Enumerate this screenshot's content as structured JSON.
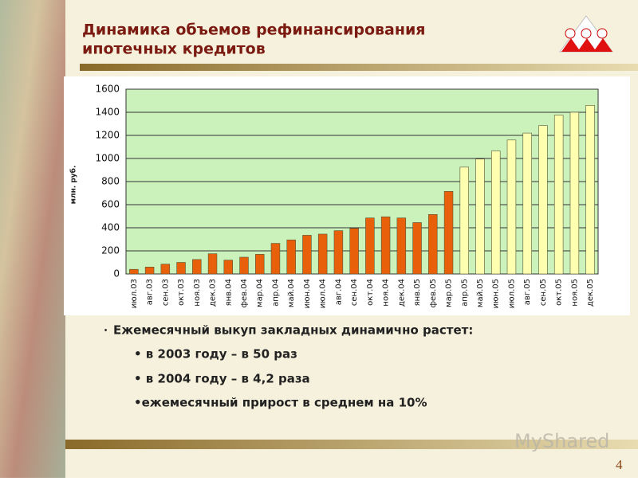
{
  "chart_data": {
    "type": "bar",
    "title": "Динамика объемов рефинансирования",
    "subtitle": "ипотечных кредитов",
    "y_label": "млн. руб.",
    "categories": [
      "июл.03",
      "авг.03",
      "сен.03",
      "окт.03",
      "ноя.03",
      "дек.03",
      "янв.04",
      "фев.04",
      "мар.04",
      "апр.04",
      "май.04",
      "июн.04",
      "июл.04",
      "авг.04",
      "сен.04",
      "окт.04",
      "ноя.04",
      "дек.04",
      "янв.05",
      "фев.05",
      "мар.05",
      "апр.05",
      "май.05",
      "июн.05",
      "июл.05",
      "авг.05",
      "сен.05",
      "окт.05",
      "ноя.05",
      "дек.05"
    ],
    "values": [
      40,
      60,
      85,
      100,
      125,
      175,
      120,
      145,
      170,
      265,
      295,
      335,
      345,
      375,
      395,
      485,
      495,
      485,
      445,
      515,
      715,
      925,
      995,
      1065,
      1160,
      1220,
      1285,
      1375,
      1400,
      1460
    ],
    "colors": [
      "#e8600a",
      "#e8600a",
      "#e8600a",
      "#e8600a",
      "#e8600a",
      "#e8600a",
      "#e8600a",
      "#e8600a",
      "#e8600a",
      "#e8600a",
      "#e8600a",
      "#e8600a",
      "#e8600a",
      "#e8600a",
      "#e8600a",
      "#e8600a",
      "#e8600a",
      "#e8600a",
      "#e8600a",
      "#e8600a",
      "#e8600a",
      "#ffffb0",
      "#ffffb0",
      "#ffffb0",
      "#ffffb0",
      "#ffffb0",
      "#ffffb0",
      "#ffffb0",
      "#ffffb0",
      "#ffffb0"
    ],
    "ylim": [
      0,
      1600
    ],
    "yticks": [
      0,
      200,
      400,
      600,
      800,
      1000,
      1200,
      1400,
      1600
    ],
    "grid": true
  },
  "bullets": [
    "Ежемесячный выкуп закладных динамично растет:",
    "• в 2003 году – в 50 раз",
    "• в 2004 году – в 4,2 раза",
    "•ежемесячный прирост в среднем на 10%"
  ],
  "watermark": "MyShared",
  "page_number": "4"
}
